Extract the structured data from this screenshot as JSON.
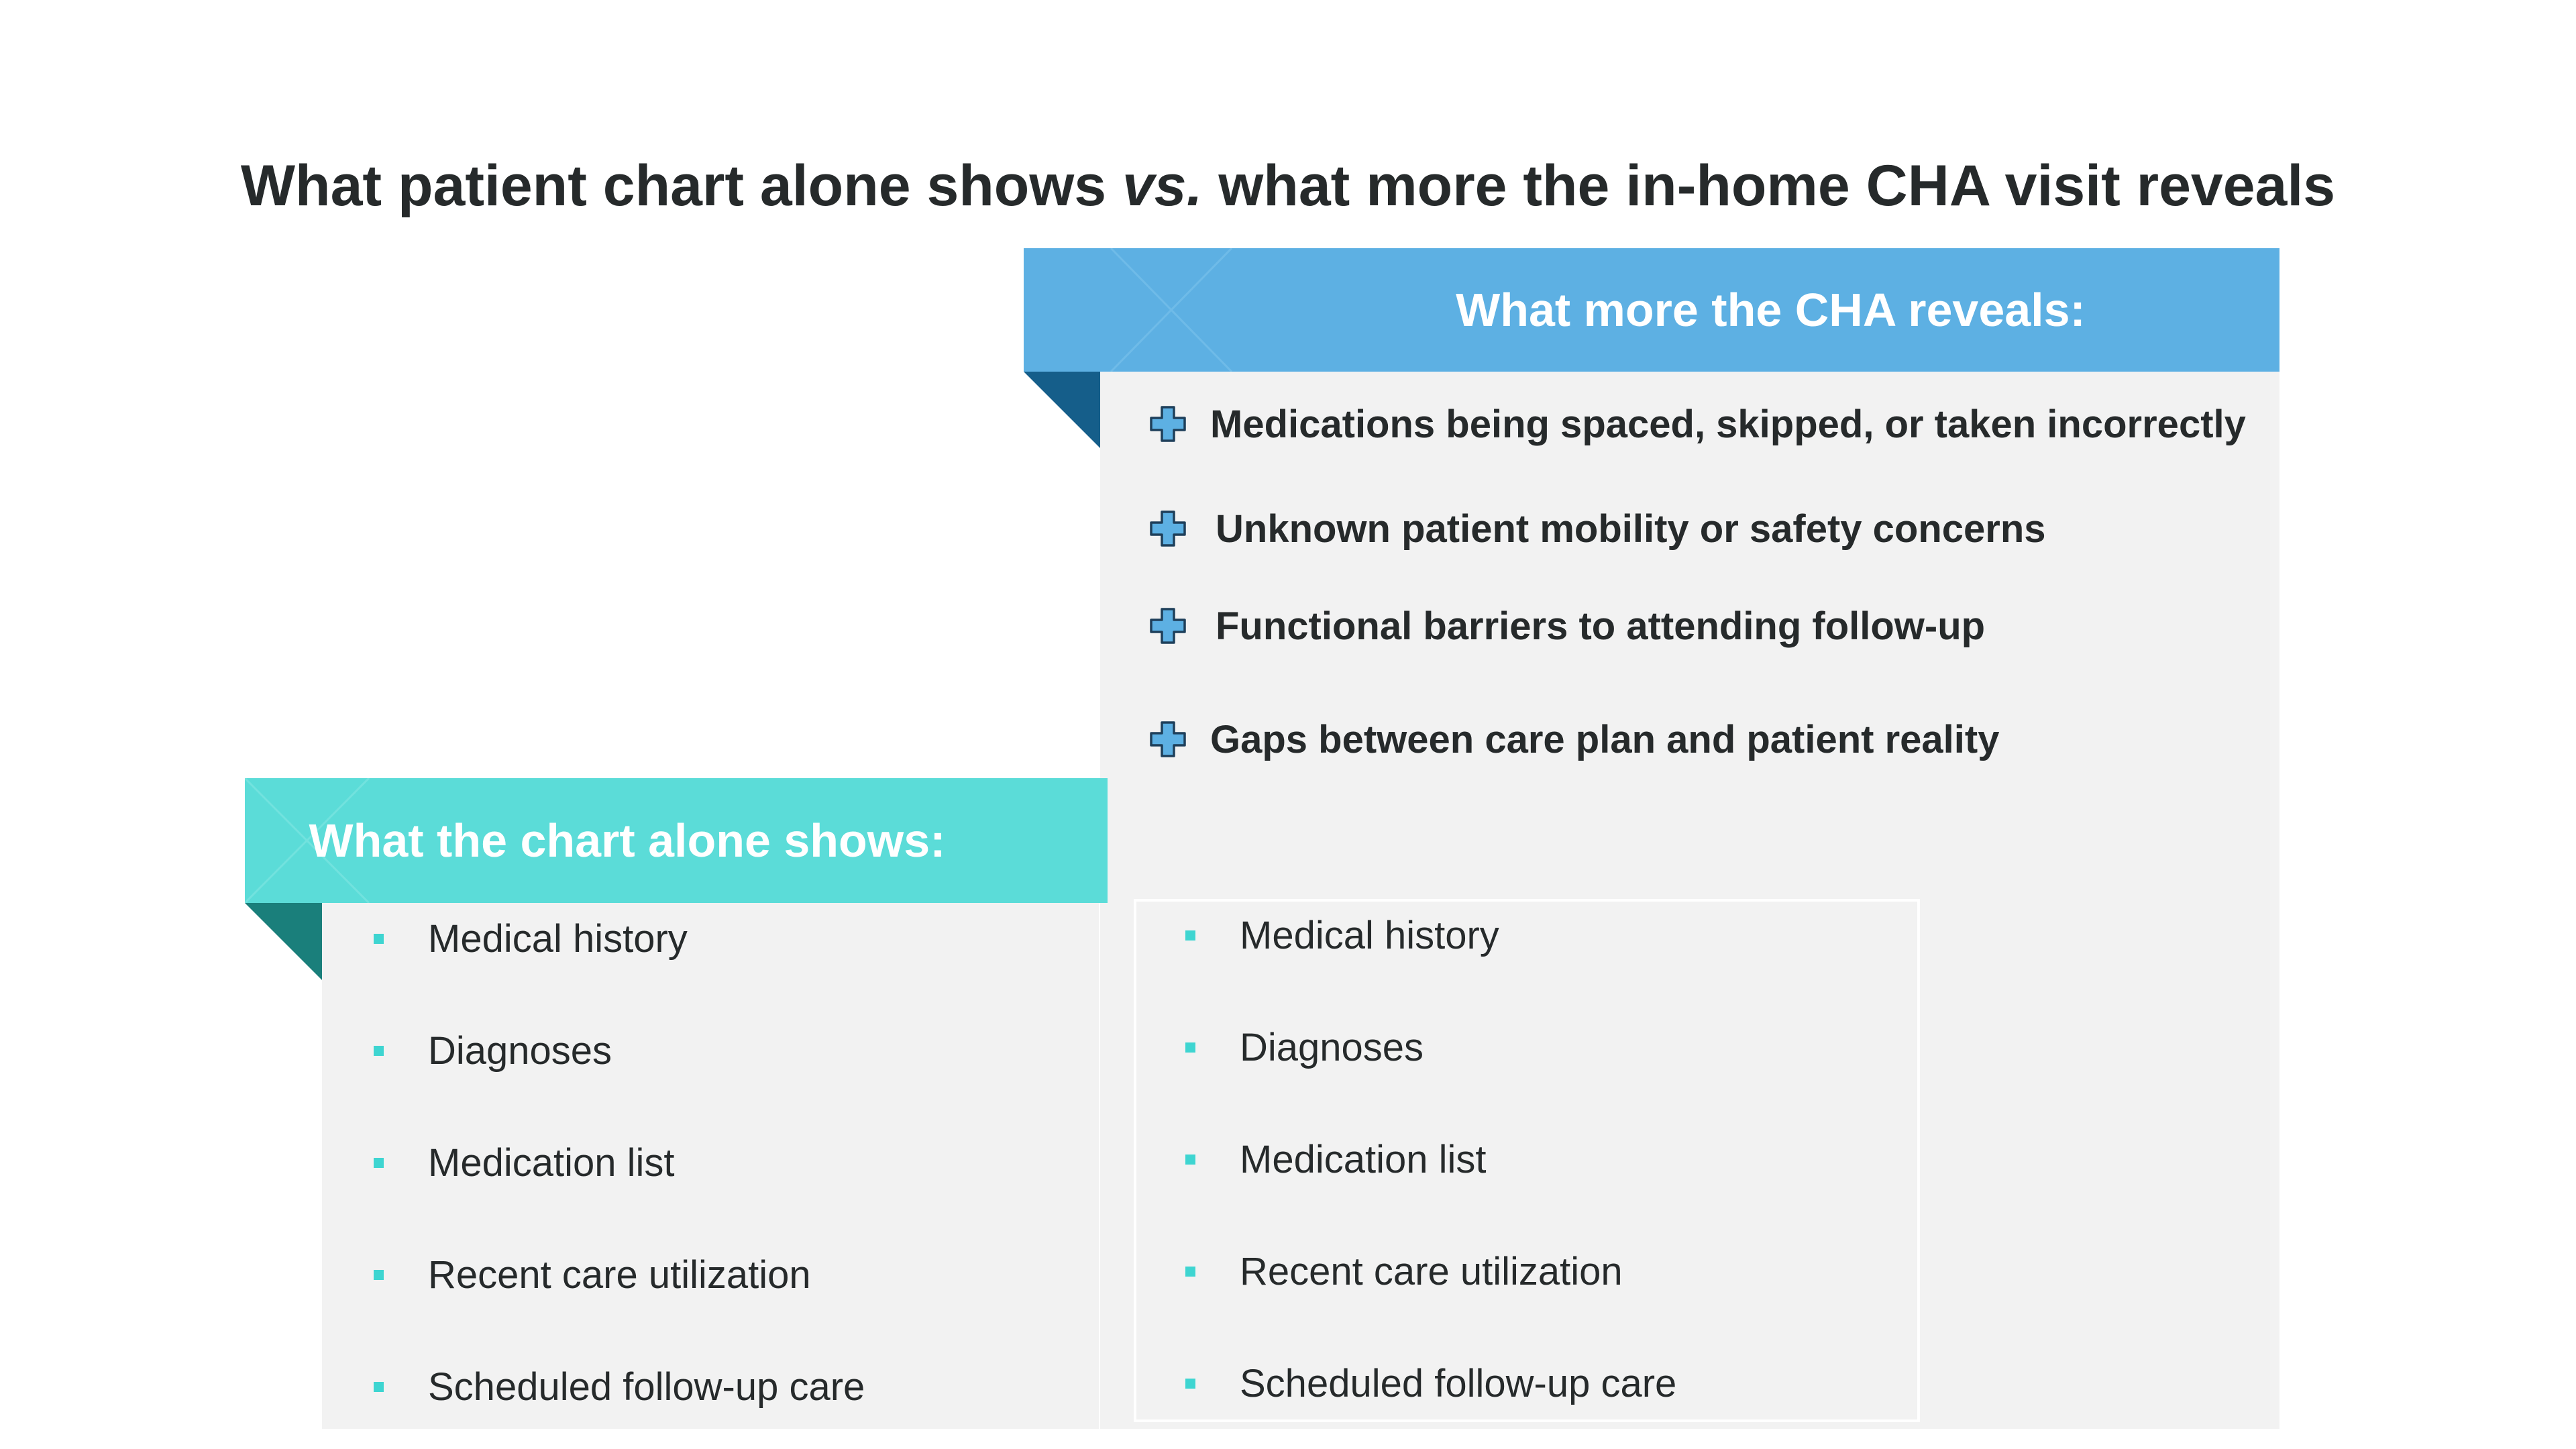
{
  "slide": {
    "title_prefix": "What patient chart alone shows ",
    "title_vs": "vs.",
    "title_suffix": " what more the in-home CHA visit reveals"
  },
  "cha_card": {
    "title": "What more the CHA reveals:",
    "header_color": "#5db0e3",
    "fold_color": "#155e8a",
    "items": [
      {
        "label": "Medications being spaced, skipped, or taken incorrectly",
        "icon": "plus-icon"
      },
      {
        "label": "Unknown patient mobility or safety concerns",
        "icon": "plus-icon"
      },
      {
        "label": "Functional barriers to attending follow-up",
        "icon": "plus-icon"
      },
      {
        "label": "Gaps between care plan and patient reality",
        "icon": "plus-icon"
      }
    ]
  },
  "chart_card": {
    "title": "What the chart alone shows:",
    "header_color": "#5bdcd8",
    "fold_color": "#1a7f7b",
    "items": [
      {
        "label": "Medical history"
      },
      {
        "label": "Diagnoses"
      },
      {
        "label": "Medication list"
      },
      {
        "label": "Recent care utilization"
      },
      {
        "label": "Scheduled follow-up care"
      }
    ]
  },
  "inner_box": {
    "items": [
      {
        "label": "Medical history"
      },
      {
        "label": "Diagnoses"
      },
      {
        "label": "Medication list"
      },
      {
        "label": "Recent care utilization"
      },
      {
        "label": "Scheduled follow-up care"
      }
    ]
  },
  "colors": {
    "title_text": "#262a2b",
    "card_body": "#f2f2f2",
    "bullet": "#3ed5d1",
    "plus_fill": "#5db0e3",
    "plus_stroke": "#1e3f5a"
  }
}
